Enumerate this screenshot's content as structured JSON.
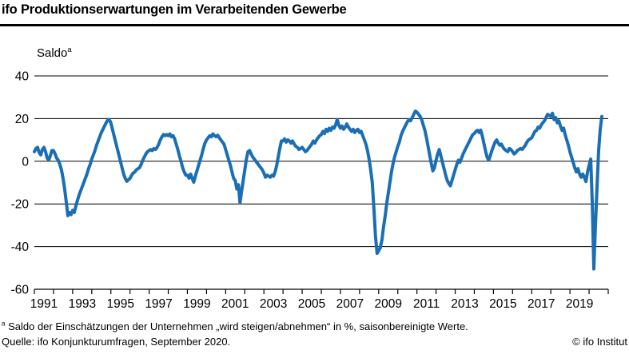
{
  "header": {
    "title": "ifo Produktionserwartungen im Verarbeitenden Gewerbe"
  },
  "chart_data": {
    "type": "line",
    "title": "ifo Produktionserwartungen im Verarbeitenden Gewerbe",
    "unit_label": "Saldo",
    "unit_label_sup": "a",
    "ylim": [
      -60,
      40
    ],
    "grid": "horizontal-only",
    "legend": "none",
    "y_axis": {
      "ticks": [
        40,
        20,
        0,
        -20,
        -40,
        -60
      ],
      "gridlines": [
        40,
        20,
        0,
        -20,
        -40
      ]
    },
    "x_axis": {
      "start_year": 1991,
      "end_year": 2021,
      "tick_interval_years": 1,
      "label_years": [
        1991,
        1993,
        1995,
        1997,
        1999,
        2001,
        2003,
        2005,
        2007,
        2009,
        2011,
        2013,
        2015,
        2017,
        2019
      ]
    },
    "series": [
      {
        "name": "Produktionserwartungen (Saldo, saisonbereinigt)",
        "color": "#1a6eb4",
        "frequency": "monthly",
        "start_year": 1991,
        "values": [
          4.5,
          6,
          6.5,
          4,
          3,
          5.5,
          6.5,
          4.5,
          1.5,
          0.5,
          2.5,
          5,
          5,
          3.5,
          1.5,
          0.5,
          -1.5,
          -4,
          -8,
          -13,
          -19,
          -25.5,
          -24,
          -25,
          -23,
          -24,
          -21,
          -18.5,
          -16,
          -14,
          -12,
          -10,
          -8,
          -6,
          -3.5,
          -1.5,
          1,
          3,
          5,
          7.5,
          9.5,
          11.5,
          13.5,
          15,
          16.5,
          18,
          19.3,
          19.5,
          18,
          15,
          12,
          9,
          6,
          3,
          0,
          -3,
          -6,
          -8,
          -9.4,
          -8.7,
          -8,
          -6.5,
          -5.5,
          -5,
          -4,
          -3.5,
          -3,
          -1.5,
          0.5,
          2,
          3.5,
          4.5,
          5,
          5.5,
          5,
          6,
          5.5,
          6.5,
          8,
          10,
          11.5,
          12.5,
          12,
          12.5,
          12,
          12.8,
          11.5,
          12,
          10.5,
          8,
          5.5,
          2.5,
          0,
          -3,
          -5,
          -6.5,
          -6.5,
          -7.9,
          -6,
          -8,
          -9.8,
          -7,
          -4.5,
          -2,
          0.5,
          3,
          6,
          8.5,
          10,
          11,
          12,
          11.5,
          12.8,
          12,
          11.5,
          12.2,
          11,
          10,
          9,
          8,
          5.5,
          3,
          0.5,
          -2,
          -5,
          -8,
          -9,
          -13,
          -11,
          -19.5,
          -14,
          -9,
          -4,
          1,
          4.5,
          5,
          3.5,
          2,
          1,
          0,
          -1,
          -2,
          -3,
          -4,
          -5.5,
          -7.5,
          -6.5,
          -7,
          -7.5,
          -6.5,
          -7,
          -5,
          -2,
          2,
          6,
          9.5,
          9.5,
          10.5,
          9,
          10,
          9.5,
          8.5,
          9.5,
          8,
          7,
          6.5,
          5.5,
          6,
          6.5,
          5.5,
          4.5,
          5,
          6,
          7,
          8,
          9.5,
          8.5,
          10,
          11,
          12,
          12.5,
          14,
          13,
          15,
          14,
          15.5,
          14.5,
          16,
          15.5,
          17,
          19.5,
          17,
          15.5,
          16.5,
          15,
          16,
          17.5,
          16,
          15,
          14,
          15,
          13.5,
          14.5,
          15,
          13.5,
          14,
          12,
          10,
          8,
          5,
          1,
          -4,
          -10,
          -22,
          -35,
          -43.2,
          -42,
          -40.5,
          -37,
          -31,
          -26,
          -20,
          -15,
          -10,
          -5,
          -1,
          2,
          4.5,
          7,
          9,
          12,
          14,
          15.5,
          17,
          18.5,
          19.5,
          19,
          20.5,
          22,
          23.5,
          23,
          22,
          21,
          19.5,
          17,
          14.5,
          11,
          7,
          3,
          -1,
          -4.5,
          -3,
          0.5,
          3.5,
          5.5,
          2.5,
          -0.5,
          -3.5,
          -6.5,
          -9,
          -10.5,
          -11.5,
          -9,
          -6.5,
          -4,
          -1.5,
          0.5,
          -0.5,
          1.5,
          3.5,
          5,
          6.5,
          8,
          9.5,
          11,
          12.5,
          13,
          14,
          14.5,
          13.5,
          14.6,
          12,
          8.5,
          5,
          2,
          0.5,
          2.5,
          5,
          7,
          9,
          10,
          8.5,
          7.5,
          8,
          6.5,
          5.5,
          5,
          4.5,
          6,
          5.5,
          4.5,
          3.4,
          4,
          5,
          5.5,
          6,
          5.5,
          6.5,
          7.5,
          9,
          10,
          10.5,
          11,
          12.5,
          14,
          14.5,
          16,
          15.5,
          17,
          18,
          19,
          20.5,
          22,
          21.5,
          21,
          22.5,
          19.5,
          20.5,
          18,
          19,
          16.5,
          14.5,
          15.5,
          12.5,
          10,
          7.5,
          4.5,
          2,
          -0.5,
          -3,
          -5,
          -3.5,
          -6,
          -7.5,
          -6,
          -7.5,
          -9.5,
          -5,
          -2,
          1,
          -20,
          -50.5,
          -30,
          -12,
          5,
          15,
          21
        ]
      }
    ]
  },
  "footnotes": {
    "a_sup": "a",
    "a_text": " Saldo der Einschätzungen der Unternehmen „wird steigen/abnehmen“ in %, saisonbereinigte Werte.",
    "source": "Quelle: ifo Konjunkturumfragen, September 2020.",
    "copyright": "© ifo Institut"
  }
}
